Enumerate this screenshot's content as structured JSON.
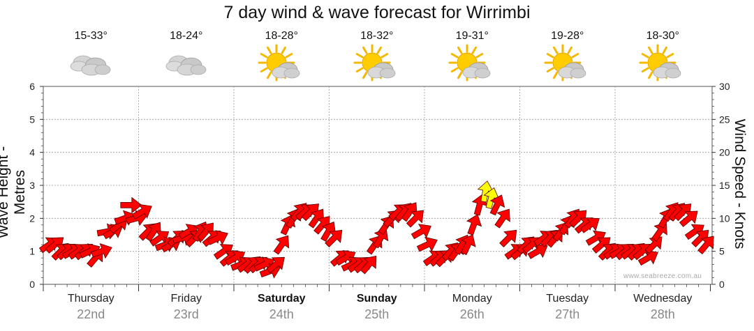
{
  "title": "7 day wind & wave forecast for Wirrimbi",
  "watermark": "www.seabreeze.com.au",
  "days": [
    {
      "name": "Thursday",
      "date": "22nd",
      "temp": "15-33°",
      "icon": "cloudy-icon",
      "bold": false
    },
    {
      "name": "Friday",
      "date": "23rd",
      "temp": "18-24°",
      "icon": "cloudy-icon",
      "bold": false
    },
    {
      "name": "Saturday",
      "date": "24th",
      "temp": "18-28°",
      "icon": "partly-sunny-icon",
      "bold": true
    },
    {
      "name": "Sunday",
      "date": "25th",
      "temp": "18-32°",
      "icon": "partly-sunny-icon",
      "bold": true
    },
    {
      "name": "Monday",
      "date": "26th",
      "temp": "19-31°",
      "icon": "partly-sunny-icon",
      "bold": false
    },
    {
      "name": "Tuesday",
      "date": "27th",
      "temp": "19-28°",
      "icon": "partly-sunny-icon",
      "bold": false
    },
    {
      "name": "Wednesday",
      "date": "28th",
      "temp": "18-30°",
      "icon": "partly-sunny-icon",
      "bold": false
    }
  ],
  "colors": {
    "arrow_normal": "#ff0000",
    "arrow_strong": "#ffff00",
    "arrow_stroke": "#5a0000",
    "grid": "#999999"
  },
  "chart_data": {
    "type": "line",
    "title": "7 day wind & wave forecast for Wirrimbi",
    "ylabel_left": "Wave Height - Metres",
    "ylabel_right": "Wind Speed - Knots",
    "ylim_left": [
      0,
      6
    ],
    "ylim_right": [
      0,
      30
    ],
    "yticks_left": [
      "0",
      "1",
      "2",
      "3",
      "4",
      "5",
      "6"
    ],
    "yticks_right": [
      "0",
      "5",
      "10",
      "15",
      "20",
      "25",
      "30"
    ],
    "grid": true,
    "series": [
      {
        "kind": "wind-arrows",
        "units": "knots",
        "values": [
          6,
          6,
          5,
          5,
          5,
          5,
          5,
          5,
          4,
          5,
          8,
          8,
          9,
          10,
          12,
          10,
          11,
          8,
          8,
          7,
          6,
          6,
          7,
          7,
          8,
          7,
          8,
          8,
          7,
          7,
          5,
          4,
          4,
          3,
          3,
          3,
          3,
          3,
          2,
          3,
          6,
          9,
          10,
          11,
          11,
          11,
          10,
          9,
          8,
          7,
          4,
          4,
          3,
          3,
          3,
          3,
          6,
          7,
          9,
          10,
          11,
          11,
          11,
          10,
          8,
          6,
          4,
          4,
          4,
          5,
          5,
          6,
          6,
          9,
          12,
          14,
          13,
          12,
          10,
          7,
          5,
          5,
          6,
          6,
          5,
          7,
          7,
          7,
          8,
          9,
          10,
          10,
          9,
          9,
          7,
          6,
          5,
          5,
          5,
          5,
          5,
          5,
          5,
          4,
          6,
          8,
          10,
          11,
          11,
          11,
          10,
          8,
          7,
          6
        ],
        "directions_deg": [
          235,
          230,
          225,
          230,
          240,
          235,
          230,
          245,
          220,
          250,
          260,
          240,
          230,
          250,
          270,
          255,
          240,
          225,
          215,
          235,
          250,
          240,
          230,
          255,
          240,
          225,
          210,
          220,
          230,
          245,
          235,
          230,
          240,
          250,
          235,
          225,
          230,
          245,
          250,
          230,
          215,
          205,
          210,
          220,
          230,
          225,
          215,
          220,
          210,
          225,
          230,
          240,
          245,
          235,
          230,
          220,
          215,
          210,
          215,
          225,
          230,
          220,
          215,
          225,
          240,
          245,
          235,
          230,
          225,
          220,
          215,
          210,
          205,
          200,
          195,
          190,
          195,
          205,
          215,
          225,
          235,
          230,
          225,
          230,
          240,
          235,
          225,
          220,
          215,
          210,
          215,
          225,
          230,
          235,
          240,
          230,
          225,
          235,
          240,
          230,
          235,
          225,
          230,
          240,
          225,
          215,
          210,
          215,
          220,
          225,
          230,
          235,
          225,
          220
        ],
        "strong_range_knots": [
          13,
          15
        ]
      }
    ]
  }
}
